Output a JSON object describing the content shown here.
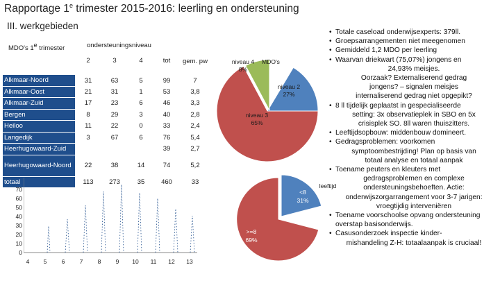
{
  "title": {
    "prefix": "Rapportage 1",
    "sup": "e",
    "suffix": " trimester 2015-2016: leerling en ondersteuning"
  },
  "subtitle": "III. werkgebieden",
  "table": {
    "mdo_title_prefix": "MDO's 1",
    "mdo_title_sup": "e",
    "mdo_title_suffix": " trimester",
    "niveau_header": "ondersteuningsniveau",
    "headers": [
      "2",
      "3",
      "4",
      "tot",
      "gem. pw"
    ],
    "rows": [
      {
        "name": "Alkmaar-Noord",
        "values": [
          "31",
          "63",
          "5",
          "99",
          "7"
        ]
      },
      {
        "name": "Alkmaar-Oost",
        "values": [
          "21",
          "31",
          "1",
          "53",
          "3,8"
        ]
      },
      {
        "name": "Alkmaar-Zuid",
        "values": [
          "17",
          "23",
          "6",
          "46",
          "3,3"
        ]
      },
      {
        "name": "Bergen",
        "values": [
          "8",
          "29",
          "3",
          "40",
          "2,8"
        ]
      },
      {
        "name": "Heiloo",
        "values": [
          "11",
          "22",
          "0",
          "33",
          "2,4"
        ]
      },
      {
        "name": "Langedijk",
        "values": [
          "3",
          "67",
          "6",
          "76",
          "5,4"
        ]
      },
      {
        "name": "Heerhugowaard-Zuid",
        "values": [
          "",
          "",
          "",
          "39",
          "2,7"
        ]
      },
      {
        "name": "Heerhugowaard-Noord",
        "values": [
          "22",
          "38",
          "14",
          "74",
          "5,2"
        ]
      },
      {
        "name": "totaal",
        "values": [
          "113",
          "273",
          "35",
          "460",
          "33"
        ]
      }
    ]
  },
  "line_chart": {
    "y_ticks": [
      "70",
      "60",
      "50",
      "40",
      "30",
      "20",
      "10",
      "0"
    ],
    "x_ticks": [
      "4",
      "5",
      "6",
      "7",
      "8",
      "9",
      "10",
      "11",
      "12",
      "13"
    ]
  },
  "pie_top": {
    "label_niveau4": "niveau 4",
    "label_mdo": "MDO's",
    "value_niveau4": "8%",
    "label_niveau2": "niveau 2",
    "value_niveau2": "27%",
    "label_niveau3": "niveau 3",
    "value_niveau3": "65%"
  },
  "pie_bottom": {
    "label_leeftijd": "leeftijd",
    "label_lt8": "<8",
    "value_lt8": "31%",
    "label_ge8": ">=8",
    "value_ge8": "69%"
  },
  "colors": {
    "table_name_bg": "#1f4e8c",
    "red": "#c0504d",
    "green": "#9bbb59",
    "blue": "#4f81bd"
  },
  "bullets": [
    {
      "kind": "b",
      "text": "Totale caseload onderwijsexperts: 379ll."
    },
    {
      "kind": "b",
      "text": "Groepsarrangementen niet meegenomen"
    },
    {
      "kind": "b",
      "text": "Gemiddeld 1,2  MDO per leerling"
    },
    {
      "kind": "b",
      "text": "Waarvan driekwart (75,07%) jongens en"
    },
    {
      "kind": "center",
      "text": "24,93% meisjes."
    },
    {
      "kind": "center",
      "text": "Oorzaak? Externaliserend gedrag"
    },
    {
      "kind": "center",
      "text": "jongens? – signalen meisjes"
    },
    {
      "kind": "center",
      "text": "internaliserend gedrag niet opgepikt?"
    },
    {
      "kind": "b",
      "text": "8 ll tijdelijk geplaatst in gespecialiseerde"
    },
    {
      "kind": "center",
      "text": "setting: 3x observatieplek in SBO en 5x"
    },
    {
      "kind": "center",
      "text": "crisisplek SO. 8ll waren thuiszitters."
    },
    {
      "kind": "b",
      "text": "Leeftijdsopbouw: middenbouw domineert."
    },
    {
      "kind": "b",
      "text": "Gedragsproblemen: voorkomen"
    },
    {
      "kind": "center",
      "text": "symptoombestrijding! Plan op basis van"
    },
    {
      "kind": "center",
      "text": "totaal analyse en totaal aanpak"
    },
    {
      "kind": "b",
      "text": "Toename peuters en kleuters met"
    },
    {
      "kind": "center",
      "text": "gedragsproblemen en complexe"
    },
    {
      "kind": "center",
      "text": "ondersteuningsbehoeften. Actie:"
    },
    {
      "kind": "center",
      "text": "onderwijszorgarrangement voor 3-7 jarigen:"
    },
    {
      "kind": "center",
      "text": "vroegtijdig interveniëren"
    },
    {
      "kind": "b",
      "text": "Toename voorschoolse opvang ondersteuning"
    },
    {
      "kind": "plain",
      "text": "overstap basisonderwijs."
    },
    {
      "kind": "b",
      "text": "Casusonderzoek inspectie kinder-"
    },
    {
      "kind": "center",
      "text": "mishandeling Z-H: totaalaanpak is cruciaal!"
    }
  ]
}
